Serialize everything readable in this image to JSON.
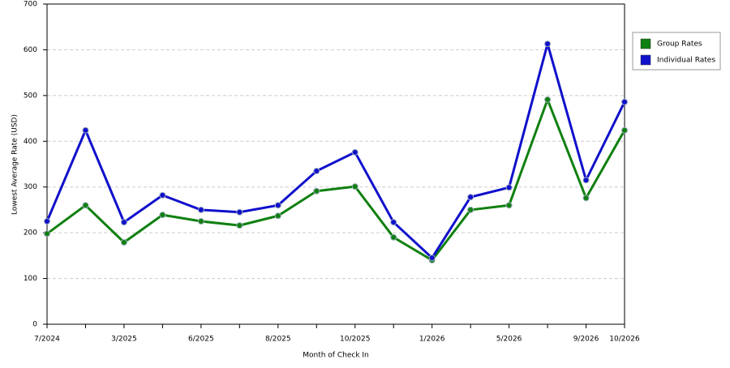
{
  "chart_data": {
    "type": "line",
    "x_label": "Month of Check In",
    "y_label": "Lowest Average Rate (USD)",
    "categories": [
      "7/2024",
      null,
      "3/2025",
      null,
      "6/2025",
      null,
      "8/2025",
      null,
      "10/2025",
      null,
      "1/2026",
      null,
      "5/2026",
      null,
      "9/2026",
      "10/2026"
    ],
    "series": [
      {
        "name": "Group Rates",
        "color": "#108010",
        "values": [
          198,
          260,
          179,
          239,
          225,
          216,
          237,
          291,
          301,
          190,
          140,
          250,
          260,
          491,
          276,
          424
        ]
      },
      {
        "name": "Individual Rates",
        "color": "#1010cc",
        "values": [
          225,
          424,
          223,
          282,
          250,
          245,
          260,
          335,
          376,
          223,
          145,
          278,
          299,
          613,
          315,
          486
        ]
      }
    ],
    "ylim": [
      0,
      700
    ],
    "yticks": [
      0,
      100,
      200,
      300,
      400,
      500,
      600,
      700
    ],
    "grid": true,
    "legend": "right"
  }
}
